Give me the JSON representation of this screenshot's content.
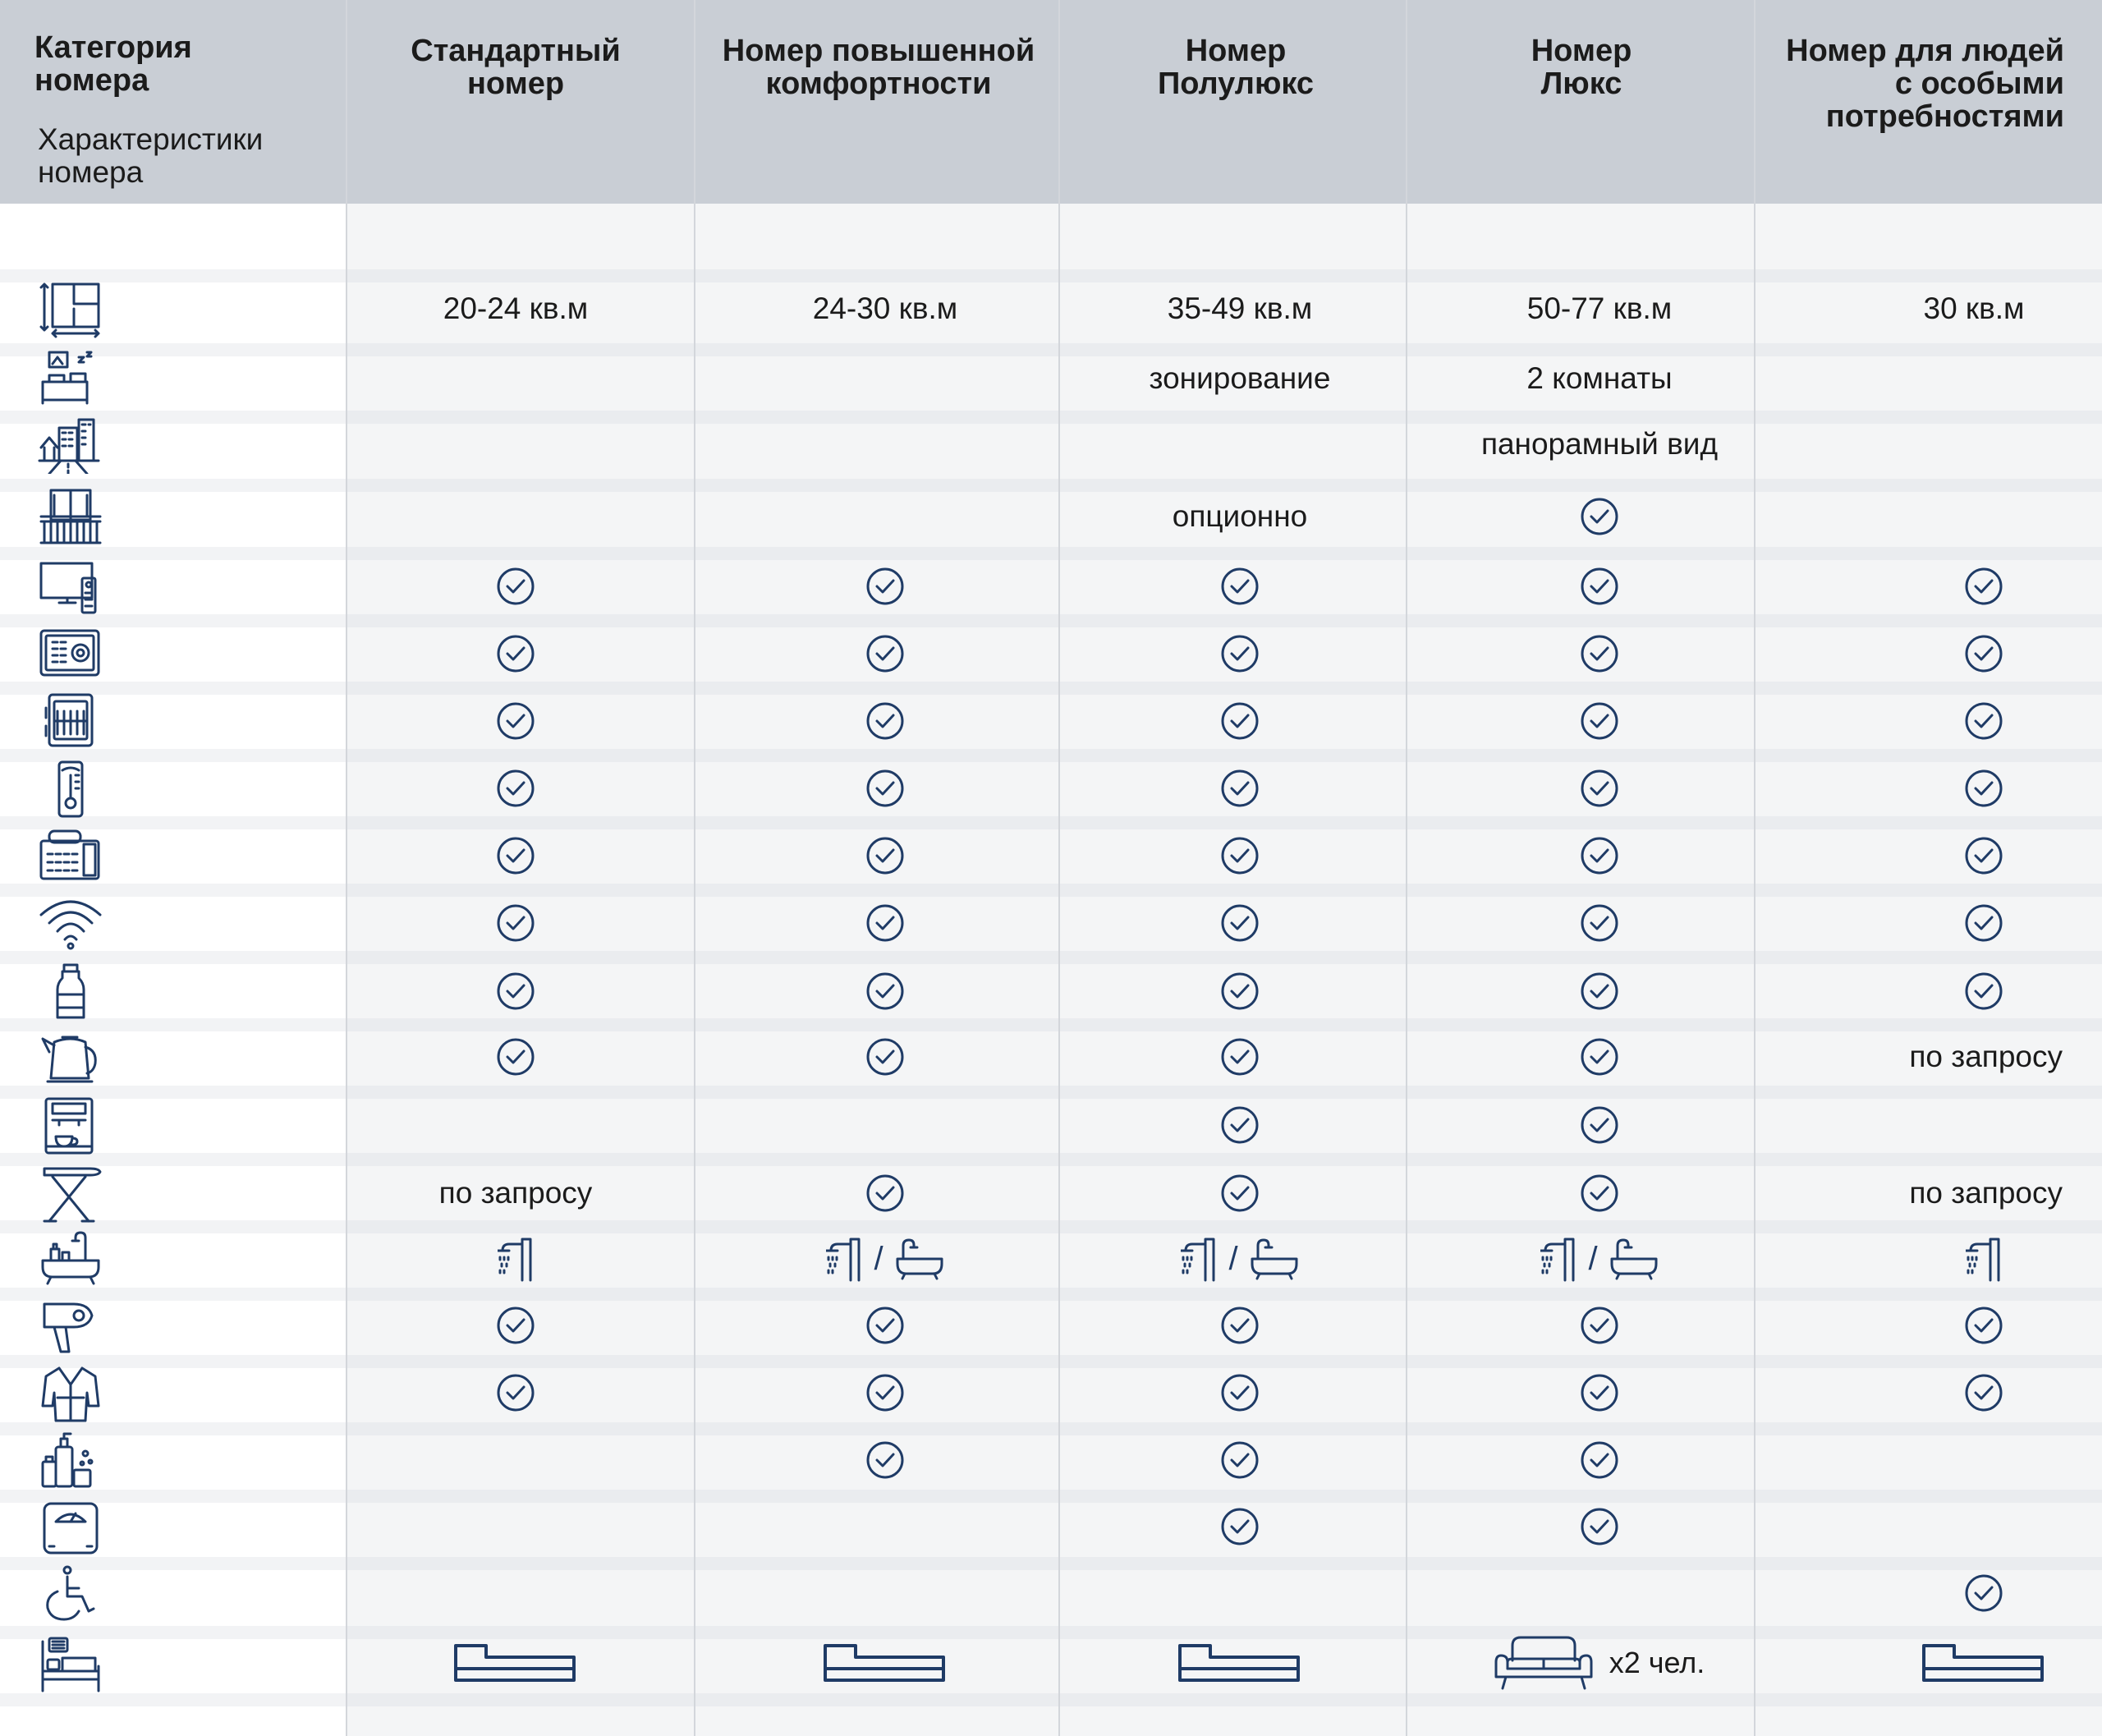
{
  "header": {
    "category_title": [
      "Категория",
      "номера"
    ],
    "features_title": [
      "Характеристики",
      "номера"
    ],
    "columns": [
      [
        "Стандартный",
        "номер"
      ],
      [
        "Номер повышенной",
        "комфортности"
      ],
      [
        "Номер",
        "Полулюкс"
      ],
      [
        "Номер",
        "Люкс"
      ],
      [
        "Номер для людей",
        "с особыми",
        "потребностями"
      ]
    ]
  },
  "rows": [
    {
      "icon": "room-area-icon",
      "cells": [
        {
          "type": "text",
          "value": "20-24 кв.м"
        },
        {
          "type": "text",
          "value": "24-30 кв.м"
        },
        {
          "type": "text",
          "value": "35-49 кв.м"
        },
        {
          "type": "text",
          "value": "50-77 кв.м"
        },
        {
          "type": "text",
          "value": "30 кв.м"
        }
      ]
    },
    {
      "icon": "zoning-icon",
      "cells": [
        {
          "type": "empty"
        },
        {
          "type": "empty"
        },
        {
          "type": "text",
          "value": "зонирование"
        },
        {
          "type": "text",
          "value": "2 комнаты"
        },
        {
          "type": "empty"
        }
      ]
    },
    {
      "icon": "city-view-icon",
      "cells": [
        {
          "type": "empty"
        },
        {
          "type": "empty"
        },
        {
          "type": "empty"
        },
        {
          "type": "text",
          "value": "панорамный вид"
        },
        {
          "type": "empty"
        }
      ]
    },
    {
      "icon": "balcony-icon",
      "cells": [
        {
          "type": "empty"
        },
        {
          "type": "empty"
        },
        {
          "type": "text",
          "value": "опционно"
        },
        {
          "type": "check"
        },
        {
          "type": "empty"
        }
      ]
    },
    {
      "icon": "tv-icon",
      "cells": [
        {
          "type": "check"
        },
        {
          "type": "check"
        },
        {
          "type": "check"
        },
        {
          "type": "check"
        },
        {
          "type": "check"
        }
      ]
    },
    {
      "icon": "safe-icon",
      "cells": [
        {
          "type": "check"
        },
        {
          "type": "check"
        },
        {
          "type": "check"
        },
        {
          "type": "check"
        },
        {
          "type": "check"
        }
      ]
    },
    {
      "icon": "minibar-icon",
      "cells": [
        {
          "type": "check"
        },
        {
          "type": "check"
        },
        {
          "type": "check"
        },
        {
          "type": "check"
        },
        {
          "type": "check"
        }
      ]
    },
    {
      "icon": "thermostat-icon",
      "cells": [
        {
          "type": "check"
        },
        {
          "type": "check"
        },
        {
          "type": "check"
        },
        {
          "type": "check"
        },
        {
          "type": "check"
        }
      ]
    },
    {
      "icon": "telephone-icon",
      "cells": [
        {
          "type": "check"
        },
        {
          "type": "check"
        },
        {
          "type": "check"
        },
        {
          "type": "check"
        },
        {
          "type": "check"
        }
      ]
    },
    {
      "icon": "wifi-icon",
      "cells": [
        {
          "type": "check"
        },
        {
          "type": "check"
        },
        {
          "type": "check"
        },
        {
          "type": "check"
        },
        {
          "type": "check"
        }
      ]
    },
    {
      "icon": "water-bottle-icon",
      "cells": [
        {
          "type": "check"
        },
        {
          "type": "check"
        },
        {
          "type": "check"
        },
        {
          "type": "check"
        },
        {
          "type": "check"
        }
      ]
    },
    {
      "icon": "kettle-icon",
      "cells": [
        {
          "type": "check"
        },
        {
          "type": "check"
        },
        {
          "type": "check"
        },
        {
          "type": "check"
        },
        {
          "type": "text",
          "value": "по запросу"
        }
      ]
    },
    {
      "icon": "coffee-machine-icon",
      "cells": [
        {
          "type": "empty"
        },
        {
          "type": "empty"
        },
        {
          "type": "check"
        },
        {
          "type": "check"
        },
        {
          "type": "empty"
        }
      ]
    },
    {
      "icon": "ironing-board-icon",
      "cells": [
        {
          "type": "text",
          "value": "по запросу"
        },
        {
          "type": "check"
        },
        {
          "type": "check"
        },
        {
          "type": "check"
        },
        {
          "type": "text",
          "value": "по запросу"
        }
      ]
    },
    {
      "icon": "bathroom-icon",
      "cells": [
        {
          "type": "shower"
        },
        {
          "type": "shower-bath"
        },
        {
          "type": "shower-bath"
        },
        {
          "type": "shower-bath"
        },
        {
          "type": "shower"
        }
      ]
    },
    {
      "icon": "hairdryer-icon",
      "cells": [
        {
          "type": "check"
        },
        {
          "type": "check"
        },
        {
          "type": "check"
        },
        {
          "type": "check"
        },
        {
          "type": "check"
        }
      ]
    },
    {
      "icon": "bathrobe-icon",
      "cells": [
        {
          "type": "check"
        },
        {
          "type": "check"
        },
        {
          "type": "check"
        },
        {
          "type": "check"
        },
        {
          "type": "check"
        }
      ]
    },
    {
      "icon": "toiletries-icon",
      "cells": [
        {
          "type": "empty"
        },
        {
          "type": "check"
        },
        {
          "type": "check"
        },
        {
          "type": "check"
        },
        {
          "type": "empty"
        }
      ]
    },
    {
      "icon": "scales-icon",
      "cells": [
        {
          "type": "empty"
        },
        {
          "type": "empty"
        },
        {
          "type": "check"
        },
        {
          "type": "check"
        },
        {
          "type": "empty"
        }
      ]
    },
    {
      "icon": "wheelchair-icon",
      "cells": [
        {
          "type": "empty"
        },
        {
          "type": "empty"
        },
        {
          "type": "empty"
        },
        {
          "type": "empty"
        },
        {
          "type": "check"
        }
      ]
    },
    {
      "icon": "extra-bed-icon",
      "cells": [
        {
          "type": "bed"
        },
        {
          "type": "bed"
        },
        {
          "type": "bed"
        },
        {
          "type": "sofa",
          "value": "x2 чел."
        },
        {
          "type": "bed"
        }
      ]
    }
  ],
  "colors": {
    "header_bg": "#c9ced5",
    "icon": "#1f3b66",
    "stripe": "#f2f3f5"
  }
}
